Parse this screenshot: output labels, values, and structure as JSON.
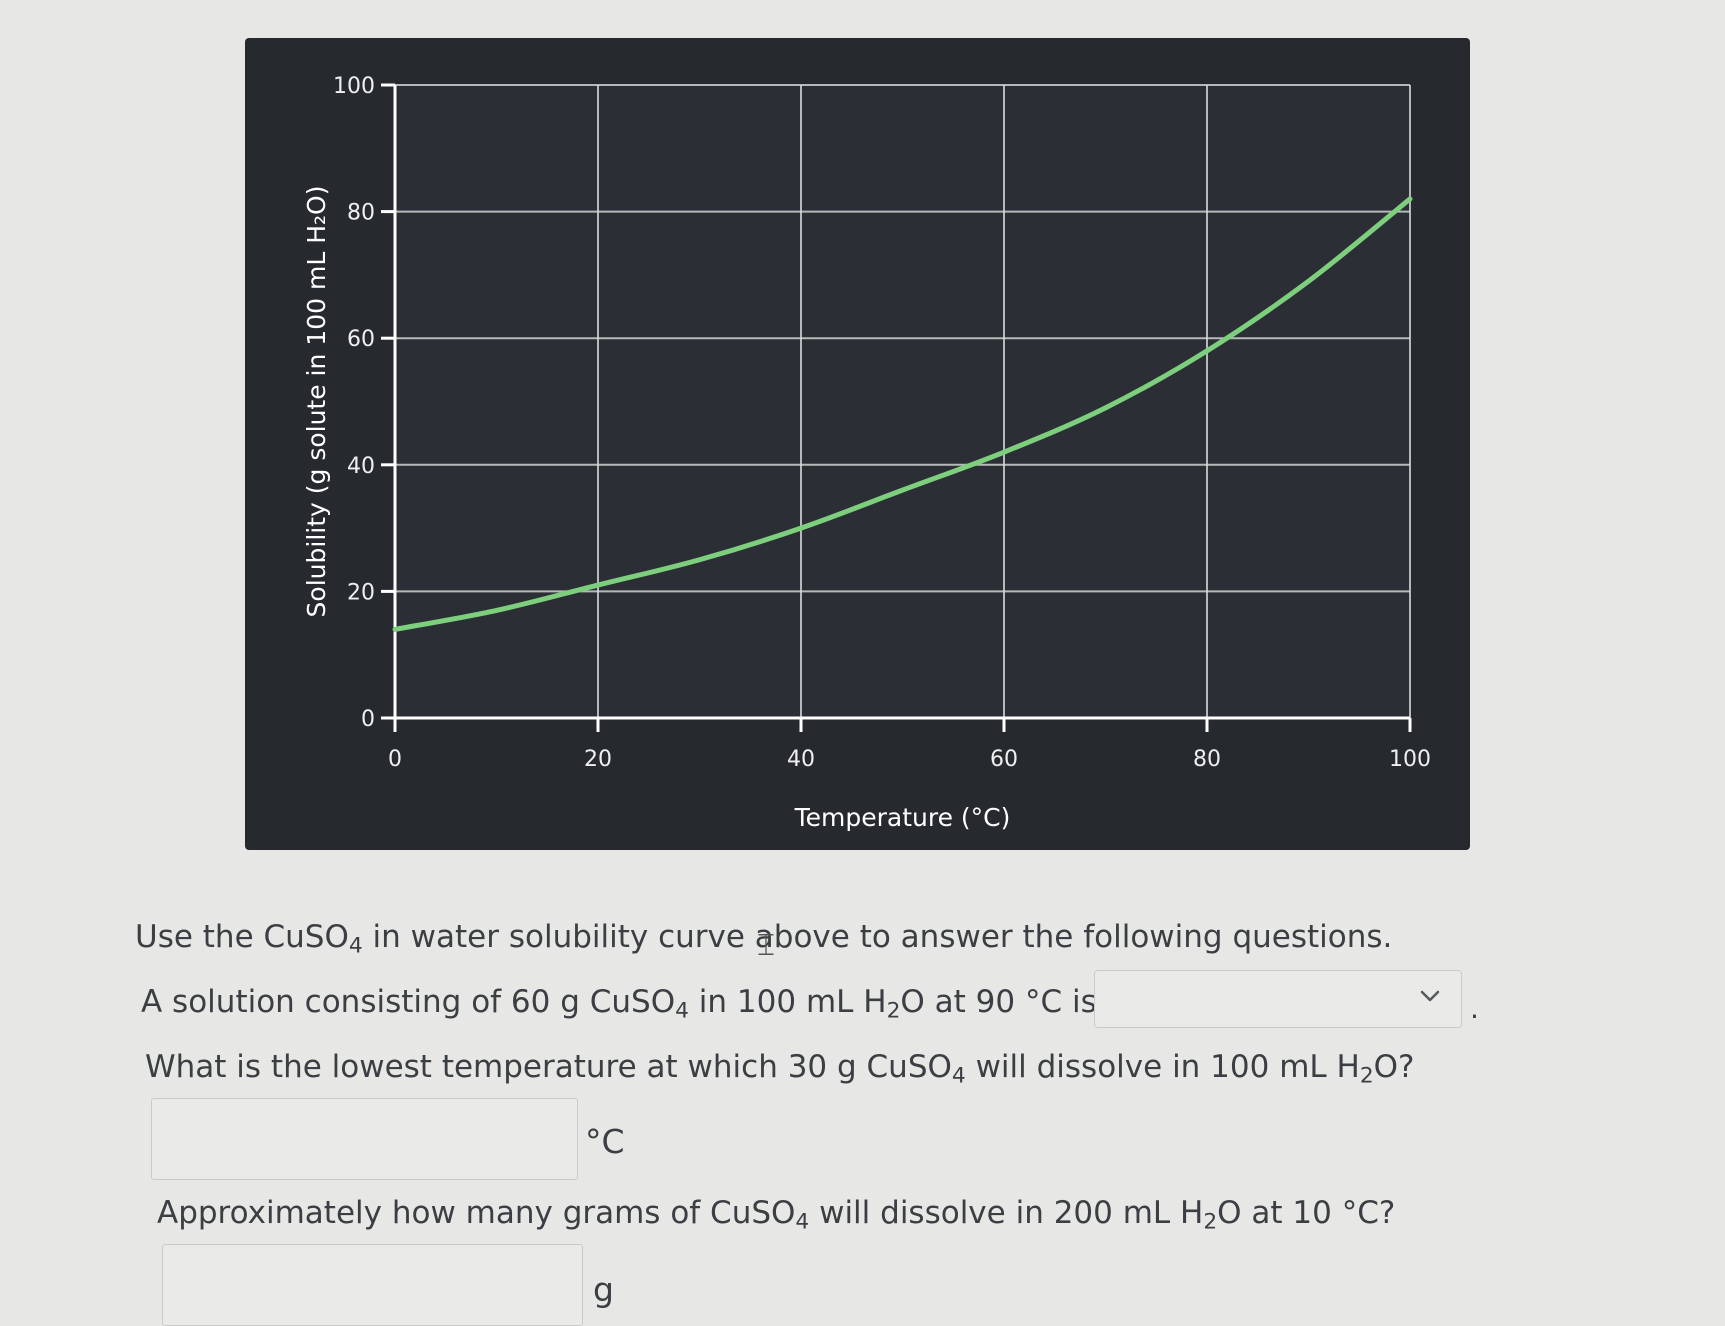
{
  "chart_data": {
    "type": "line",
    "xlabel": "Temperature (°C)",
    "ylabel": "Solubility (g solute in 100 mL H₂O)",
    "xlim": [
      0,
      100
    ],
    "ylim": [
      0,
      100
    ],
    "x_ticks": [
      "0",
      "20",
      "40",
      "60",
      "80",
      "100"
    ],
    "y_ticks": [
      "0",
      "20",
      "40",
      "60",
      "80",
      "100"
    ],
    "grid": true,
    "series": [
      {
        "color": "#7dcf7d",
        "x": [
          0,
          10,
          20,
          30,
          40,
          50,
          60,
          70,
          80,
          90,
          100
        ],
        "y": [
          14,
          17,
          21,
          25,
          30,
          36,
          42,
          49,
          58,
          69,
          82
        ]
      }
    ],
    "colors": {
      "background": "#262a2f",
      "grid": "#d9dcdb",
      "axis": "#ffffff"
    }
  },
  "questions": {
    "intro_prefix": "Use the CuSO",
    "intro_sub": "4",
    "intro_suffix": " in water solubility curve above to answer the following questions.",
    "q1_a": "A solution consisting of 60 g CuSO",
    "q1_sub1": "4",
    "q1_b": " in 100 mL H",
    "q1_sub2": "2",
    "q1_c": "O at 90 °C is",
    "q1_select_value": "",
    "q1_period": ".",
    "q2_a": "What is the lowest temperature at which 30 g CuSO",
    "q2_sub1": "4",
    "q2_b": " will dissolve in 100 mL H",
    "q2_sub2": "2",
    "q2_c": "O?",
    "q2_unit": "°C",
    "q3_a": "Approximately how many grams of CuSO",
    "q3_sub1": "4",
    "q3_b": " will dissolve in 200 mL H",
    "q3_sub2": "2",
    "q3_c": "O at 10 °C?",
    "q3_unit": "g"
  },
  "icons": {
    "select_arrow": "chevron-down-icon",
    "text_cursor": "ibeam-cursor-icon"
  }
}
